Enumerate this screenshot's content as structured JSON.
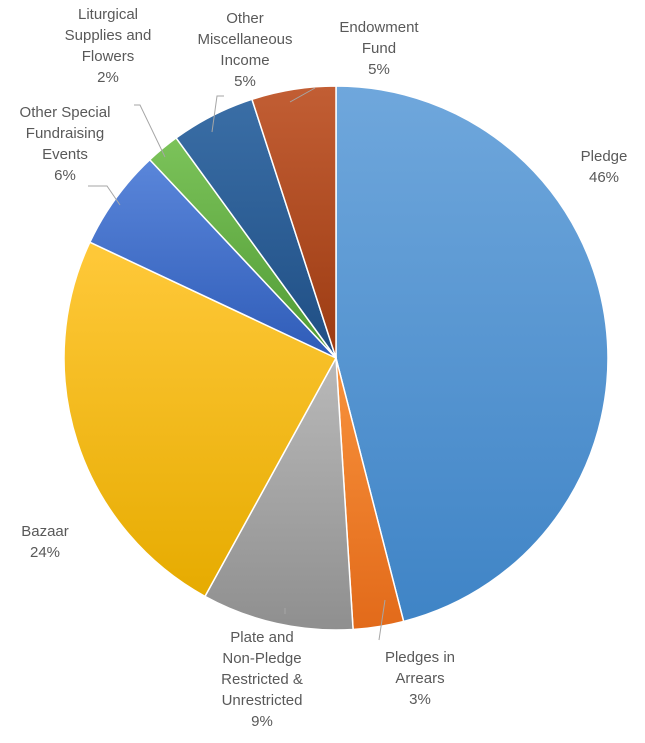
{
  "chart_data": {
    "type": "pie",
    "title": "",
    "start_angle_deg": 0,
    "direction": "clockwise",
    "slices": [
      {
        "name": "Pledge",
        "value": 46,
        "label_lines": [
          "Pledge"
        ],
        "pct": "46%",
        "colors": [
          "#6fa7dc",
          "#3f84c6"
        ]
      },
      {
        "name": "Pledges in Arrears",
        "value": 3,
        "label_lines": [
          "Pledges in",
          "Arrears"
        ],
        "pct": "3%",
        "colors": [
          "#f8923c",
          "#e26a1a"
        ]
      },
      {
        "name": "Plate and Non-Pledge Restricted & Unrestricted",
        "value": 9,
        "label_lines": [
          "Plate and",
          "Non-Pledge",
          "Restricted &",
          "Unrestricted"
        ],
        "pct": "9%",
        "colors": [
          "#b9b9b9",
          "#8f8f8f"
        ]
      },
      {
        "name": "Bazaar",
        "value": 24,
        "label_lines": [
          "Bazaar"
        ],
        "pct": "24%",
        "colors": [
          "#ffc93a",
          "#e6ab00"
        ]
      },
      {
        "name": "Other Special Fundraising Events",
        "value": 6,
        "label_lines": [
          "Other Special",
          "Fundraising",
          "Events"
        ],
        "pct": "6%",
        "colors": [
          "#5a86da",
          "#2f5cb8"
        ]
      },
      {
        "name": "Liturgical Supplies and Flowers",
        "value": 2,
        "label_lines": [
          "Liturgical",
          "Supplies and",
          "Flowers"
        ],
        "pct": "2%",
        "colors": [
          "#7cc35a",
          "#4f9a34"
        ]
      },
      {
        "name": "Other Miscellaneous Income",
        "value": 5,
        "label_lines": [
          "Other",
          "Miscellaneous",
          "Income"
        ],
        "pct": "5%",
        "colors": [
          "#3a6ea6",
          "#1f4e84"
        ]
      },
      {
        "name": "Endowment Fund",
        "value": 5,
        "label_lines": [
          "Endowment",
          "Fund"
        ],
        "pct": "5%",
        "colors": [
          "#c25e34",
          "#9c3b12"
        ]
      }
    ]
  }
}
